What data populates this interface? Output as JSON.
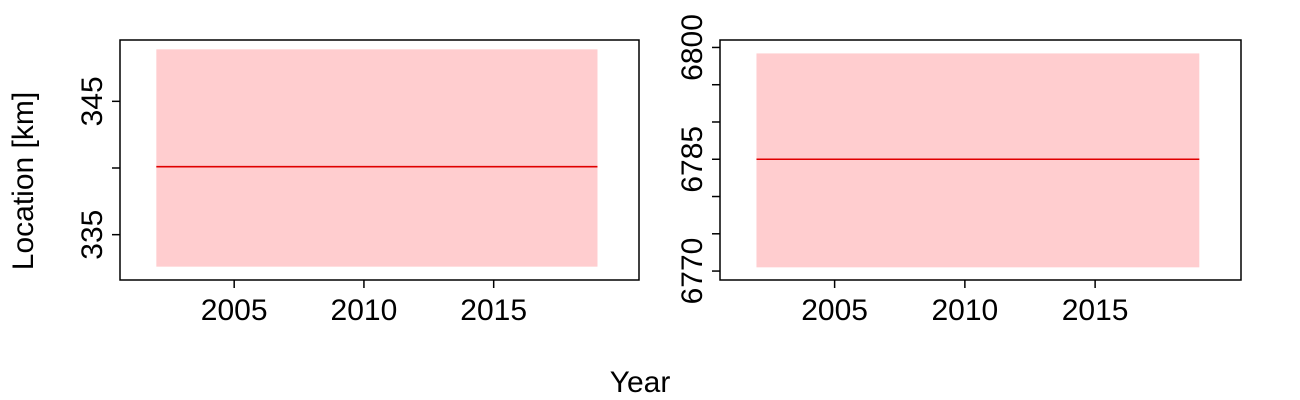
{
  "figure": {
    "xlabel": "Year",
    "ylabel": "Location [km]"
  },
  "colors": {
    "line": "#e00000",
    "band": "#ffcdcf",
    "axes": "#000000",
    "background": "#ffffff"
  },
  "chart_data": [
    {
      "type": "line",
      "title": "",
      "xlabel": "Year",
      "ylabel": "Location [km]",
      "xlim": [
        2000.6,
        2020.6
      ],
      "ylim": [
        331.6,
        349.6
      ],
      "x_ticks": [
        2005,
        2010,
        2015
      ],
      "y_ticks": [
        335,
        340,
        345
      ],
      "y_tick_labels": [
        "335",
        "",
        "345"
      ],
      "grid": false,
      "series": [
        {
          "x": [
            2002,
            2019
          ],
          "y": [
            340.1,
            340.1
          ]
        }
      ],
      "band": {
        "x": [
          2002,
          2019
        ],
        "lower": [
          332.6,
          332.6
        ],
        "upper": [
          348.9,
          348.9
        ]
      }
    },
    {
      "type": "line",
      "title": "",
      "xlabel": "Year",
      "ylabel": "",
      "xlim": [
        2000.6,
        2020.6
      ],
      "ylim": [
        6768.8,
        6801.0
      ],
      "x_ticks": [
        2005,
        2010,
        2015
      ],
      "y_ticks": [
        6770,
        6775,
        6780,
        6785,
        6790,
        6795,
        6800
      ],
      "y_tick_labels": [
        "6770",
        "",
        "",
        "6785",
        "",
        "",
        "6800"
      ],
      "grid": false,
      "series": [
        {
          "x": [
            2002,
            2019
          ],
          "y": [
            6785.0,
            6785.0
          ]
        }
      ],
      "band": {
        "x": [
          2002,
          2019
        ],
        "lower": [
          6770.5,
          6770.5
        ],
        "upper": [
          6799.2,
          6799.2
        ]
      }
    }
  ]
}
